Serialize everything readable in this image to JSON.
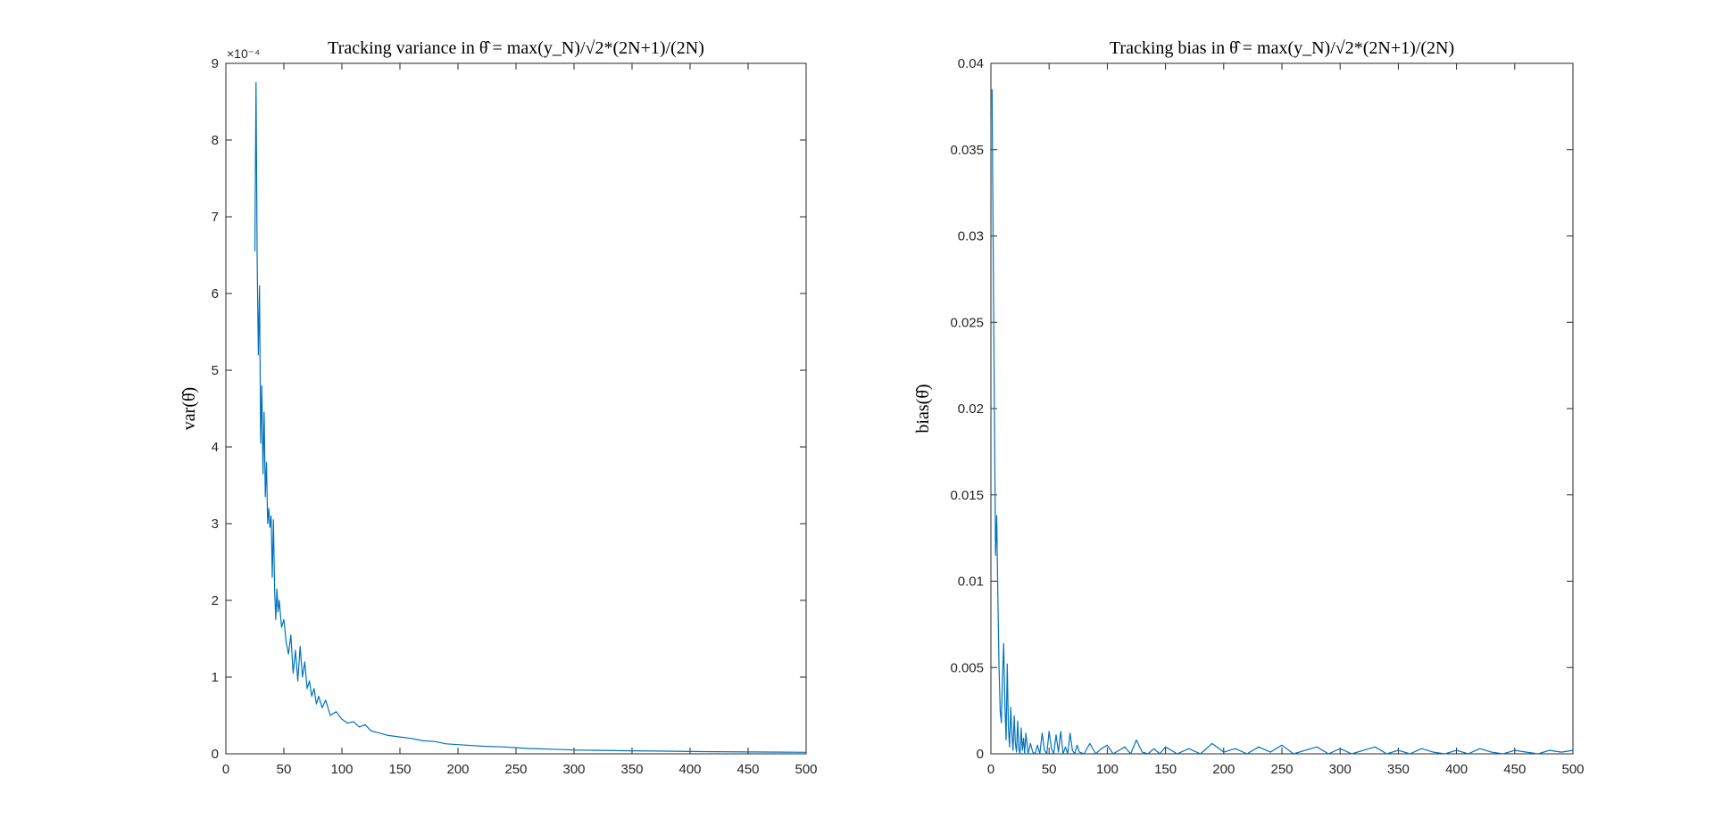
{
  "chart_data": [
    {
      "type": "line",
      "title": "Tracking variance in θ̂ = max(y_N)/√2*(2N+1)/(2N)",
      "xlabel": "",
      "ylabel": "var(θ̂)",
      "exponent_label": "×10⁻⁴",
      "xlim": [
        0,
        500
      ],
      "ylim": [
        0,
        9
      ],
      "x_ticks": [
        0,
        50,
        100,
        150,
        200,
        250,
        300,
        350,
        400,
        450,
        500
      ],
      "y_ticks": [
        0,
        1,
        2,
        3,
        4,
        5,
        6,
        7,
        8,
        9
      ],
      "x_tick_labels": [
        "0",
        "50",
        "100",
        "150",
        "200",
        "250",
        "300",
        "350",
        "400",
        "450",
        "500"
      ],
      "y_tick_labels": [
        "0",
        "1",
        "2",
        "3",
        "4",
        "5",
        "6",
        "7",
        "8",
        "9"
      ],
      "grid": false,
      "line_color": "#0072BD",
      "series": [
        {
          "x": [
            25,
            26,
            27,
            28,
            29,
            30,
            31,
            32,
            33,
            34,
            35,
            36,
            37,
            38,
            39,
            40,
            41,
            42,
            43,
            44,
            45,
            46,
            48,
            50,
            52,
            54,
            56,
            58,
            60,
            62,
            64,
            66,
            68,
            70,
            72,
            74,
            76,
            78,
            80,
            83,
            86,
            90,
            95,
            100,
            105,
            110,
            115,
            120,
            125,
            130,
            140,
            150,
            160,
            170,
            180,
            190,
            200,
            220,
            240,
            260,
            280,
            300,
            320,
            350,
            380,
            400,
            420,
            450,
            480,
            500
          ],
          "y": [
            6.55,
            8.75,
            6.4,
            5.2,
            6.1,
            4.05,
            4.8,
            3.65,
            4.45,
            3.35,
            3.8,
            3.0,
            3.2,
            2.95,
            3.1,
            2.3,
            3.05,
            2.15,
            1.75,
            2.15,
            1.85,
            2.0,
            1.65,
            1.75,
            1.45,
            1.3,
            1.55,
            1.05,
            1.35,
            0.95,
            1.4,
            1.0,
            1.2,
            0.85,
            0.95,
            0.75,
            0.85,
            0.65,
            0.75,
            0.6,
            0.7,
            0.5,
            0.55,
            0.45,
            0.4,
            0.42,
            0.35,
            0.38,
            0.3,
            0.28,
            0.24,
            0.22,
            0.2,
            0.17,
            0.16,
            0.13,
            0.12,
            0.1,
            0.09,
            0.07,
            0.06,
            0.05,
            0.045,
            0.04,
            0.035,
            0.03,
            0.028,
            0.025,
            0.022,
            0.02
          ]
        }
      ]
    },
    {
      "type": "line",
      "title": "Tracking bias in θ̂ = max(y_N)/√2*(2N+1)/(2N)",
      "xlabel": "",
      "ylabel": "bias(θ̂)",
      "xlim": [
        0,
        500
      ],
      "ylim": [
        0,
        0.04
      ],
      "x_ticks": [
        0,
        50,
        100,
        150,
        200,
        250,
        300,
        350,
        400,
        450,
        500
      ],
      "y_ticks": [
        0,
        0.005,
        0.01,
        0.015,
        0.02,
        0.025,
        0.03,
        0.035,
        0.04
      ],
      "x_tick_labels": [
        "0",
        "50",
        "100",
        "150",
        "200",
        "250",
        "300",
        "350",
        "400",
        "450",
        "500"
      ],
      "y_tick_labels": [
        "0",
        "0.005",
        "0.01",
        "0.015",
        "0.02",
        "0.025",
        "0.03",
        "0.035",
        "0.04"
      ],
      "grid": false,
      "line_color": "#0072BD",
      "series": [
        {
          "x": [
            1,
            2,
            3,
            4,
            5,
            6,
            7,
            8,
            9,
            10,
            11,
            12,
            13,
            14,
            15,
            16,
            17,
            18,
            19,
            20,
            21,
            22,
            23,
            24,
            25,
            26,
            27,
            28,
            29,
            30,
            32,
            34,
            36,
            38,
            40,
            42,
            44,
            46,
            48,
            50,
            52,
            54,
            56,
            58,
            60,
            62,
            64,
            66,
            68,
            70,
            72,
            74,
            76,
            80,
            85,
            90,
            95,
            100,
            105,
            110,
            115,
            120,
            125,
            130,
            135,
            140,
            145,
            150,
            160,
            170,
            180,
            190,
            200,
            210,
            220,
            230,
            240,
            250,
            260,
            270,
            280,
            290,
            300,
            310,
            320,
            330,
            340,
            350,
            360,
            370,
            380,
            390,
            400,
            410,
            420,
            430,
            440,
            450,
            460,
            470,
            480,
            490,
            500
          ],
          "y": [
            0.0385,
            0.029,
            0.02,
            0.0115,
            0.0138,
            0.009,
            0.005,
            0.0025,
            0.0018,
            0.0045,
            0.0064,
            0.003,
            0.0008,
            0.0052,
            0.0015,
            0.0004,
            0.0027,
            0.0012,
            0.0002,
            0.0022,
            0.0006,
            0.0001,
            0.0019,
            0.0003,
            0.0,
            0.0015,
            0.0002,
            0.0009,
            0.0,
            0.0012,
            0.0,
            0.0006,
            0.0001,
            0.0,
            0.0005,
            0.0,
            0.0012,
            0.0002,
            0.0,
            0.0013,
            0.0003,
            0.0,
            0.0011,
            0.0001,
            0.0013,
            0.0,
            0.0004,
            0.0,
            0.0012,
            0.0002,
            0.0,
            0.0005,
            0.0001,
            0.0,
            0.0006,
            0.0,
            0.0003,
            0.0005,
            0.0,
            0.0002,
            0.0004,
            0.0,
            0.0008,
            0.0001,
            0.0,
            0.0003,
            0.0,
            0.0004,
            0.0,
            0.0003,
            0.0,
            0.0006,
            0.0001,
            0.0003,
            0.0,
            0.0004,
            0.0001,
            0.0005,
            0.0,
            0.0002,
            0.0004,
            0.0,
            0.0003,
            0.0,
            0.0002,
            0.0004,
            0.0,
            0.0002,
            0.0,
            0.0003,
            0.0001,
            0.0,
            0.0002,
            0.0,
            0.0003,
            0.0001,
            0.0,
            0.0002,
            0.0001,
            0.0,
            0.0002,
            0.0001,
            0.0002
          ]
        }
      ]
    }
  ]
}
